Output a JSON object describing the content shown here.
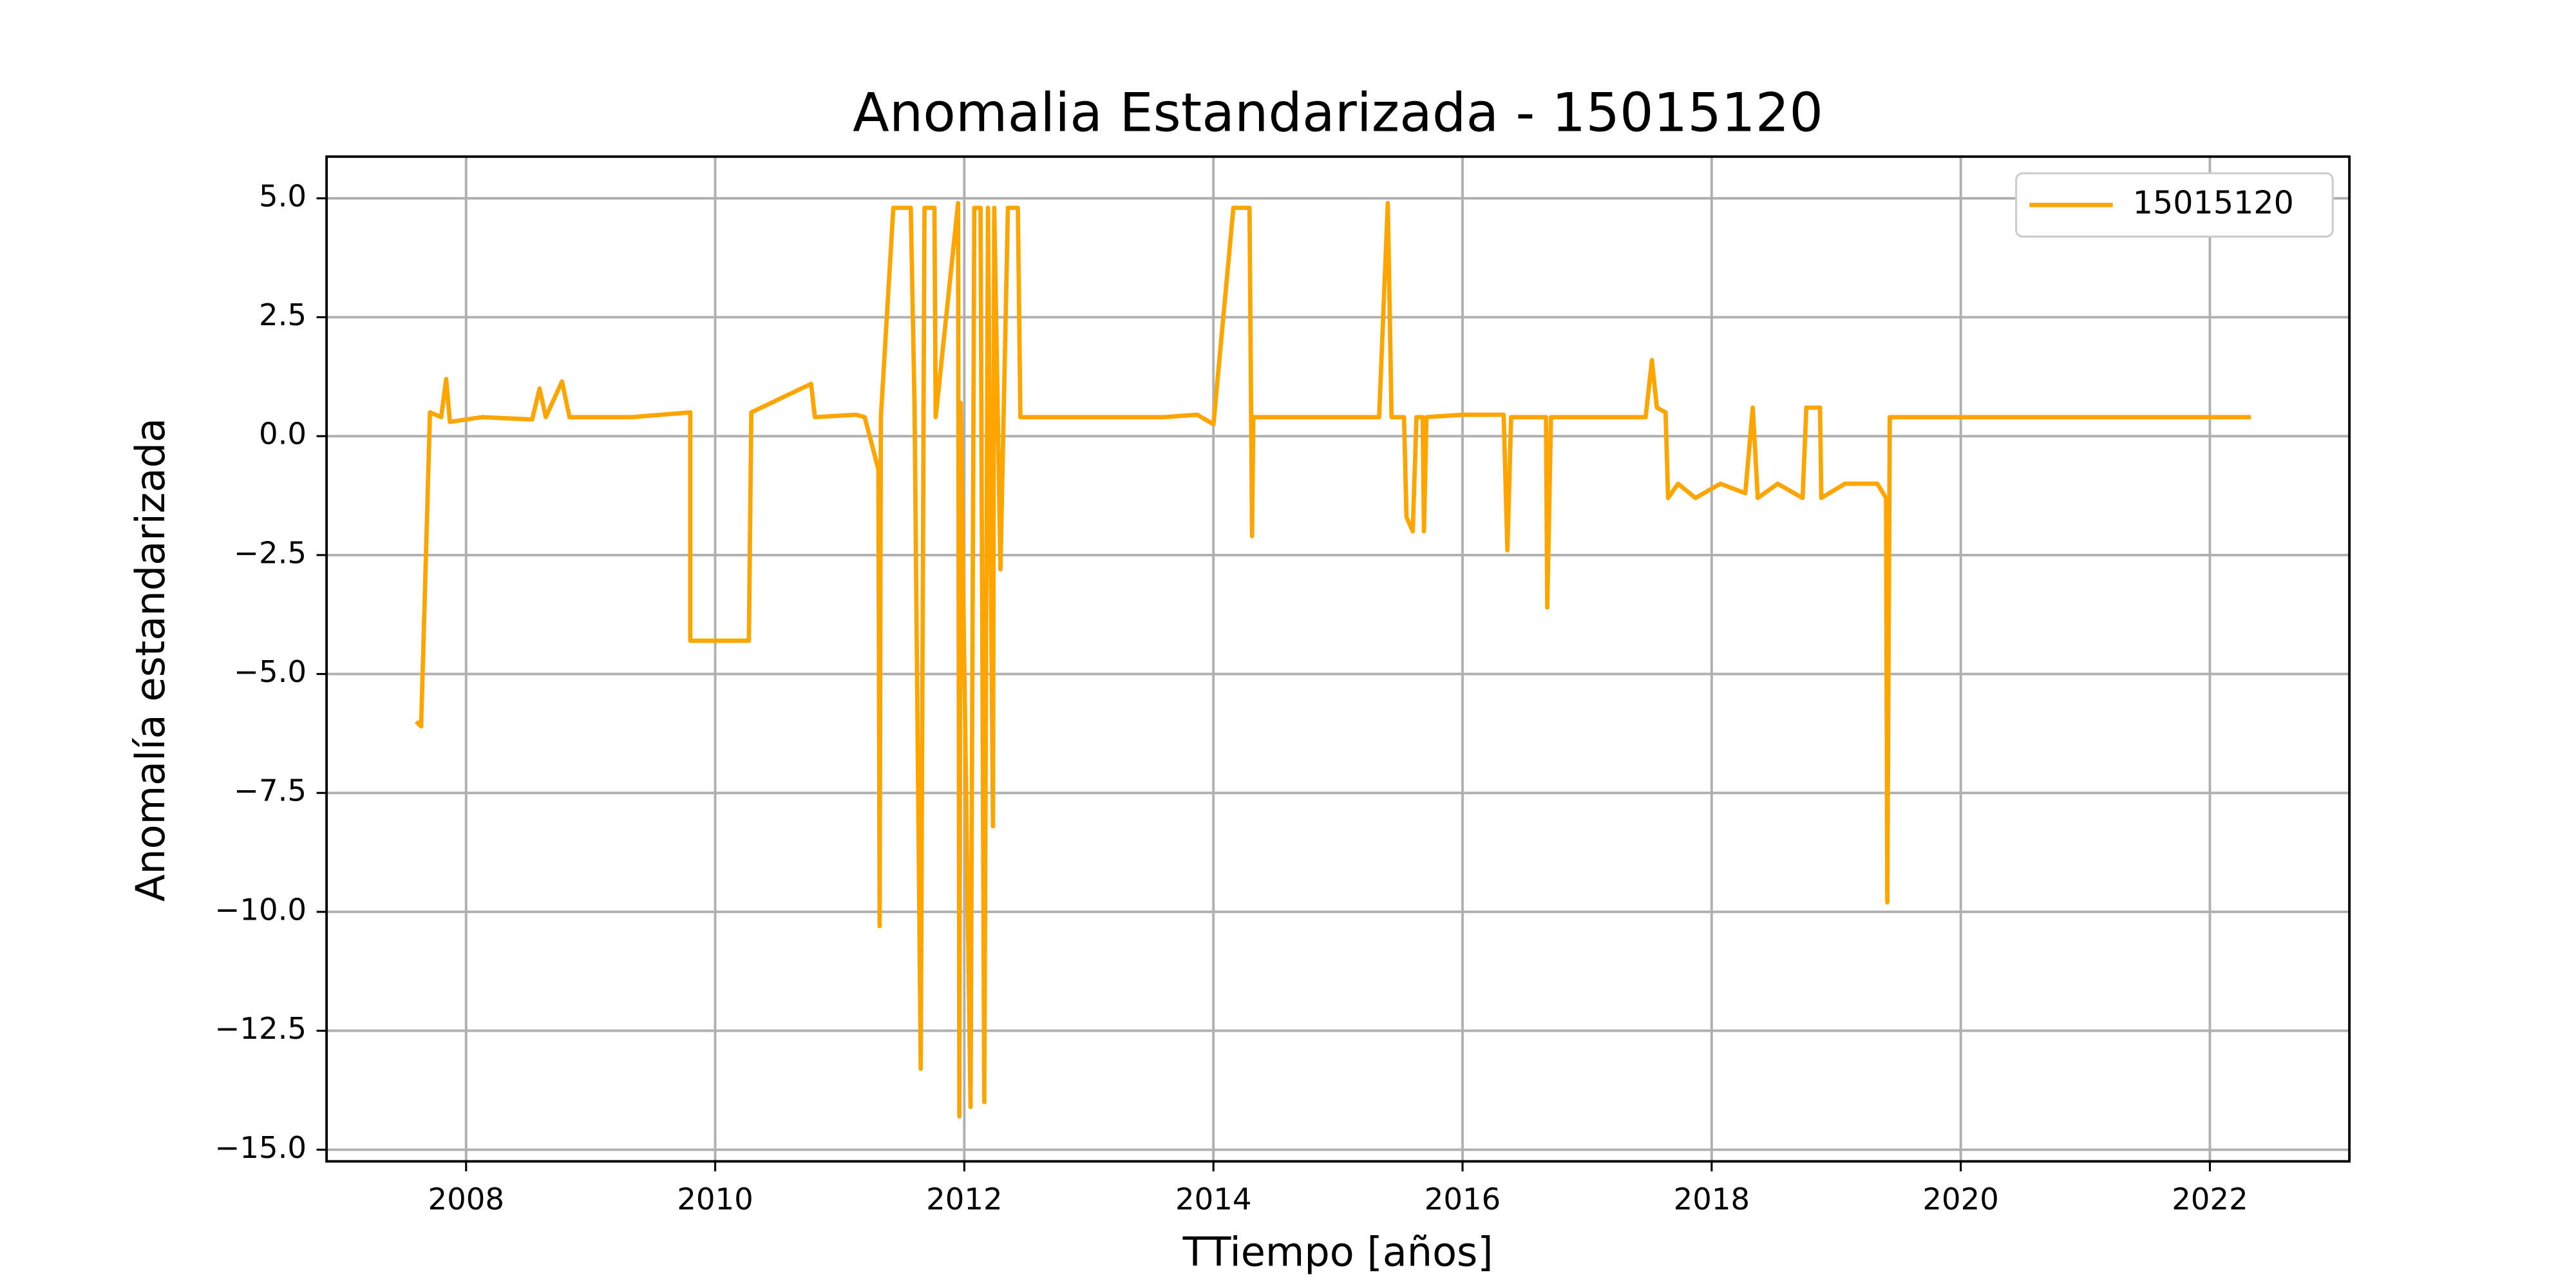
{
  "chart_data": {
    "type": "line",
    "title": "Anomalia Estandarizada - 15015120",
    "xlabel": "TTiempo [años]",
    "ylabel": "Anomalía estandarizada",
    "x": [
      2007.6,
      2007.64,
      2007.64,
      2007.71,
      2007.8,
      2007.84,
      2007.87,
      2008.13,
      2008.53,
      2008.59,
      2008.64,
      2008.77,
      2008.83,
      2009.33,
      2009.8,
      2009.8,
      2010,
      2010.27,
      2010.29,
      2010.77,
      2010.8,
      2011.13,
      2011.2,
      2011.31,
      2011.32,
      2011.33,
      2011.43,
      2011.57,
      2011.6,
      2011.65,
      2011.68,
      2011.76,
      2011.77,
      2011.95,
      2011.96,
      2011.97,
      2012.05,
      2012.08,
      2012.13,
      2012.16,
      2012.19,
      2012.23,
      2012.24,
      2012.29,
      2012.35,
      2012.43,
      2012.45,
      2013.6,
      2013.87,
      2014,
      2014.16,
      2014.29,
      2014.31,
      2014.32,
      2015.33,
      2015.4,
      2015.43,
      2015.53,
      2015.55,
      2015.6,
      2015.63,
      2015.68,
      2015.69,
      2015.71,
      2016,
      2016.33,
      2016.36,
      2016.39,
      2016.67,
      2016.68,
      2016.71,
      2017.47,
      2017.52,
      2017.56,
      2017.63,
      2017.65,
      2017.73,
      2017.87,
      2018.07,
      2018.27,
      2018.33,
      2018.37,
      2018.53,
      2018.73,
      2018.76,
      2018.87,
      2018.88,
      2019.07,
      2019.33,
      2019.4,
      2019.41,
      2019.43,
      2020.67,
      2021.27,
      2022.33
    ],
    "series": [
      {
        "name": "15015120",
        "color": "#ffa500",
        "values": [
          -6.0,
          -6.1,
          -6.0,
          0.5,
          0.4,
          1.2,
          0.3,
          0.4,
          0.35,
          1.0,
          0.4,
          1.15,
          0.4,
          0.4,
          0.5,
          -4.3,
          -4.3,
          -4.3,
          0.5,
          1.1,
          0.4,
          0.45,
          0.4,
          -0.7,
          -10.3,
          0.4,
          4.8,
          4.8,
          0.7,
          -13.3,
          4.8,
          4.8,
          0.4,
          4.9,
          -14.3,
          0.7,
          -14.1,
          4.8,
          4.8,
          -14.0,
          4.8,
          -8.2,
          4.8,
          -2.8,
          4.8,
          4.8,
          0.4,
          0.4,
          0.45,
          0.25,
          4.8,
          4.8,
          -2.1,
          0.4,
          0.4,
          4.9,
          0.4,
          0.4,
          -1.7,
          -2.0,
          0.4,
          0.4,
          -2.0,
          0.4,
          0.45,
          0.45,
          -2.4,
          0.4,
          0.4,
          -3.6,
          0.4,
          0.4,
          1.6,
          0.6,
          0.5,
          -1.3,
          -1.0,
          -1.3,
          -1.0,
          -1.2,
          0.6,
          -1.3,
          -1.0,
          -1.3,
          0.6,
          0.6,
          -1.3,
          -1.0,
          -1.0,
          -1.3,
          -9.8,
          0.4,
          0.4,
          0.4,
          0.4
        ]
      }
    ],
    "xlim": [
      2006.88,
      2023.12
    ],
    "xticks": [
      2008,
      2010,
      2012,
      2014,
      2016,
      2018,
      2020,
      2022
    ],
    "ylim": [
      -15.245,
      5.876
    ],
    "yticks": [
      {
        "value": 5,
        "label": "5.0"
      },
      {
        "value": 2.5,
        "label": "2.5"
      },
      {
        "value": 0,
        "label": "0.0"
      },
      {
        "value": -2.5,
        "label": "−2.5"
      },
      {
        "value": -5,
        "label": "−5.0"
      },
      {
        "value": -7.5,
        "label": "−7.5"
      },
      {
        "value": -10,
        "label": "−10.0"
      },
      {
        "value": -12.5,
        "label": "−12.5"
      },
      {
        "value": -15,
        "label": "−15.0"
      }
    ],
    "grid": true,
    "legend": "upper right"
  }
}
